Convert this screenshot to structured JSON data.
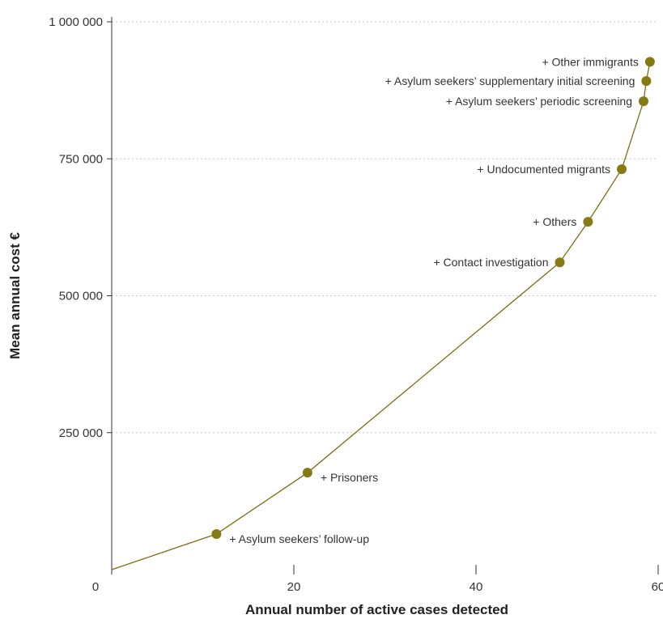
{
  "chart_data": {
    "type": "line",
    "title": "",
    "xlabel": "Annual number of active cases detected",
    "ylabel": "Mean annual cost €",
    "xlim": [
      0,
      60
    ],
    "ylim": [
      0,
      1000000
    ],
    "x_ticks": [
      {
        "value": 0,
        "label": "0"
      },
      {
        "value": 20,
        "label": "20"
      },
      {
        "value": 40,
        "label": "40"
      },
      {
        "value": 60,
        "label": "60"
      }
    ],
    "y_ticks": [
      {
        "value": 250000,
        "label": "250 000"
      },
      {
        "value": 500000,
        "label": "500 000"
      },
      {
        "value": 750000,
        "label": "750 000"
      },
      {
        "value": 1000000,
        "label": "1 000 000"
      }
    ],
    "grid": "horizontal dotted",
    "line_color": "#7a6e12",
    "marker_color": "#857a14",
    "origin": {
      "x": 0,
      "y": 0
    },
    "points": [
      {
        "x": 11.5,
        "y": 65000,
        "label": "+ Asylum seekers’ follow-up",
        "label_side": "right"
      },
      {
        "x": 21.5,
        "y": 177000,
        "label": "+ Prisoners",
        "label_side": "right"
      },
      {
        "x": 49.2,
        "y": 561000,
        "label": "+ Contact investigation",
        "label_side": "left"
      },
      {
        "x": 52.3,
        "y": 635000,
        "label": "+ Others",
        "label_side": "left"
      },
      {
        "x": 56.0,
        "y": 731000,
        "label": "+ Undocumented migrants",
        "label_side": "left"
      },
      {
        "x": 58.4,
        "y": 855000,
        "label": "+ Asylum seekers’ periodic screening",
        "label_side": "left"
      },
      {
        "x": 58.7,
        "y": 892000,
        "label": "+ Asylum seekers’ supplementary initial screening",
        "label_side": "left"
      },
      {
        "x": 59.1,
        "y": 927000,
        "label": "+ Other immigrants",
        "label_side": "left"
      }
    ]
  }
}
